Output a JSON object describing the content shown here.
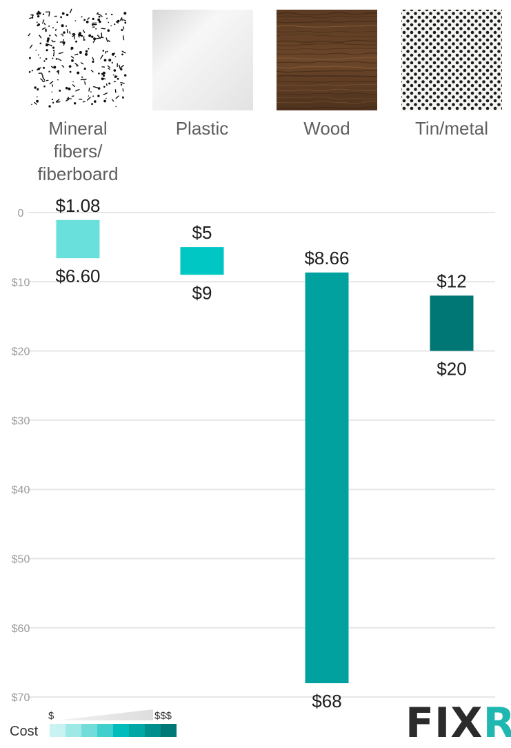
{
  "chart_data": {
    "type": "bar",
    "orientation": "vertical-range",
    "categories": [
      "Mineral fibers/ fiberboard",
      "Plastic",
      "Wood",
      "Tin/metal"
    ],
    "category_lines": [
      [
        "Mineral",
        "fibers/",
        "fiberboard"
      ],
      [
        "Plastic"
      ],
      [
        "Wood"
      ],
      [
        "Tin/metal"
      ]
    ],
    "series": [
      {
        "low": 1.08,
        "high": 6.6,
        "low_label": "$1.08",
        "high_label": "$6.60",
        "color": "#6ae0dd"
      },
      {
        "low": 5,
        "high": 9,
        "low_label": "$5",
        "high_label": "$9",
        "color": "#00c6c4"
      },
      {
        "low": 8.66,
        "high": 68,
        "low_label": "$8.66",
        "high_label": "$68",
        "color": "#00a19f"
      },
      {
        "low": 12,
        "high": 20,
        "low_label": "$12",
        "high_label": "$20",
        "color": "#007675"
      }
    ],
    "yaxis": {
      "ticks": [
        0,
        10,
        20,
        30,
        40,
        50,
        60,
        70
      ],
      "tick_labels": [
        "0",
        "$10",
        "$20",
        "$30",
        "$40",
        "$50",
        "$60",
        "$70"
      ],
      "range": [
        0,
        70
      ],
      "inverted": true
    },
    "grid": true
  },
  "textures": [
    "speckled-white",
    "glossy-white",
    "walnut-wood",
    "perforated-metal"
  ],
  "legend": {
    "title": "Cost",
    "low": "$",
    "high": "$$$",
    "swatches": [
      "#c9f3f2",
      "#9ee8e6",
      "#72dcda",
      "#3fd0cd",
      "#00bcba",
      "#00a7a5",
      "#008f8d",
      "#007877"
    ]
  },
  "logo": {
    "text": "FIXR",
    "accent": "#1fb8b0"
  }
}
